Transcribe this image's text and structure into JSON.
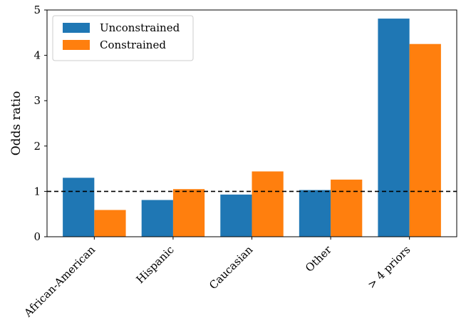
{
  "chart_data": {
    "type": "bar",
    "categories": [
      "African-American",
      "Hispanic",
      "Caucasian",
      "Other",
      "> 4 priors"
    ],
    "series": [
      {
        "name": "Unconstrained",
        "color": "#1f77b4",
        "values": [
          1.3,
          0.81,
          0.93,
          1.03,
          4.81
        ]
      },
      {
        "name": "Constrained",
        "color": "#ff7f0e",
        "values": [
          0.59,
          1.05,
          1.44,
          1.26,
          4.25
        ]
      }
    ],
    "title": "",
    "xlabel": "",
    "ylabel": "Odds ratio",
    "ylim": [
      0,
      5
    ],
    "yticks": [
      "0",
      "1",
      "2",
      "3",
      "4",
      "5"
    ],
    "reference_line": {
      "y": 1,
      "style": "dashed",
      "color": "#000000"
    },
    "legend_position": "top-left",
    "grid": false
  }
}
